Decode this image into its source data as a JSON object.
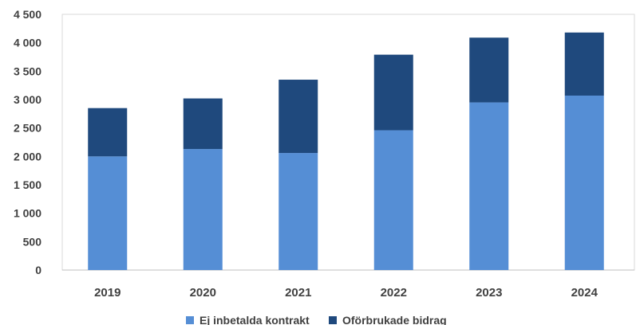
{
  "chart_data": {
    "type": "bar",
    "stacked": true,
    "title": "",
    "xlabel": "",
    "ylabel": "",
    "categories": [
      "2019",
      "2020",
      "2021",
      "2022",
      "2023",
      "2024"
    ],
    "series": [
      {
        "name": "Ej inbetalda kontrakt",
        "color": "#558ed5",
        "values": [
          2000,
          2130,
          2060,
          2460,
          2950,
          3070
        ]
      },
      {
        "name": "Oförbrukade bidrag",
        "color": "#1f497d",
        "values": [
          850,
          890,
          1290,
          1330,
          1140,
          1110
        ]
      }
    ],
    "ylim": [
      0,
      4500
    ],
    "yticks": [
      0,
      500,
      1000,
      1500,
      2000,
      2500,
      3000,
      3500,
      4000,
      4500
    ],
    "ytick_labels": [
      "0",
      "500",
      "1 000",
      "1 500",
      "2 000",
      "2 500",
      "3 000",
      "3 500",
      "4 000",
      "4 500"
    ],
    "grid": false,
    "legend_position": "bottom"
  }
}
